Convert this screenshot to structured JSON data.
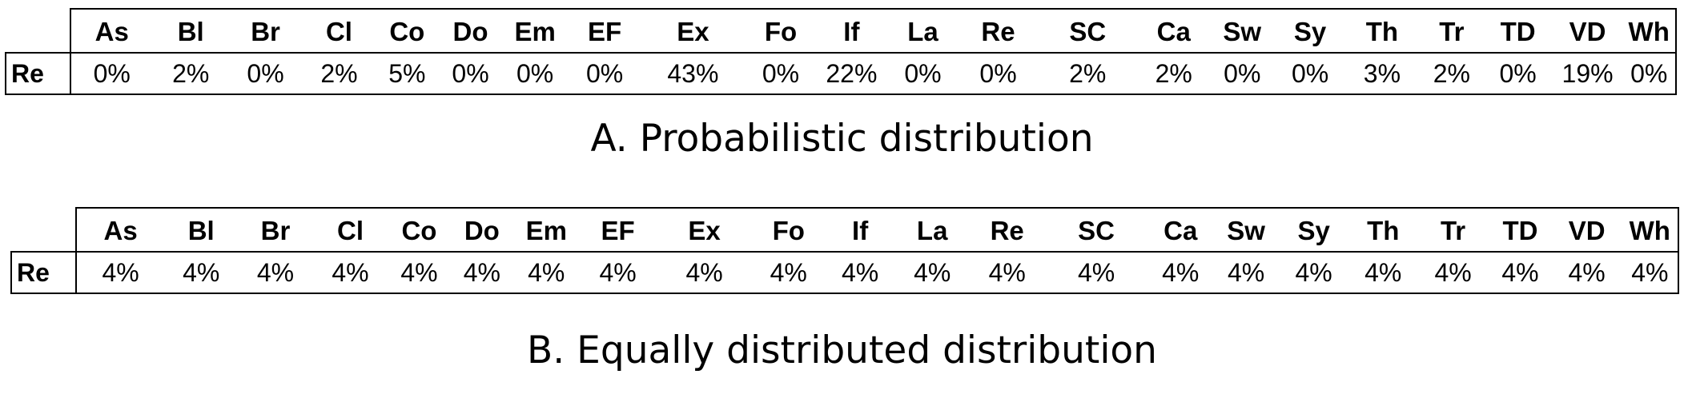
{
  "chart_data": [
    {
      "type": "table",
      "title": "A. Probabilistic distribution",
      "row_header": "Re",
      "columns": [
        "As",
        "Bl",
        "Br",
        "Cl",
        "Co",
        "Do",
        "Em",
        "EF",
        "Ex",
        "Fo",
        "If",
        "La",
        "Re",
        "SC",
        "Ca",
        "Sw",
        "Sy",
        "Th",
        "Tr",
        "TD",
        "VD",
        "Wh"
      ],
      "values": [
        "0%",
        "2%",
        "0%",
        "2%",
        "5%",
        "0%",
        "0%",
        "0%",
        "43%",
        "0%",
        "22%",
        "0%",
        "0%",
        "2%",
        "2%",
        "0%",
        "0%",
        "3%",
        "2%",
        "0%",
        "19%",
        "0%"
      ]
    },
    {
      "type": "table",
      "title": "B. Equally distributed distribution",
      "row_header": "Re",
      "columns": [
        "As",
        "Bl",
        "Br",
        "Cl",
        "Co",
        "Do",
        "Em",
        "EF",
        "Ex",
        "Fo",
        "If",
        "La",
        "Re",
        "SC",
        "Ca",
        "Sw",
        "Sy",
        "Th",
        "Tr",
        "TD",
        "VD",
        "Wh"
      ],
      "values": [
        "4%",
        "4%",
        "4%",
        "4%",
        "4%",
        "4%",
        "4%",
        "4%",
        "4%",
        "4%",
        "4%",
        "4%",
        "4%",
        "4%",
        "4%",
        "4%",
        "4%",
        "4%",
        "4%",
        "4%",
        "4%",
        "4%"
      ]
    }
  ]
}
